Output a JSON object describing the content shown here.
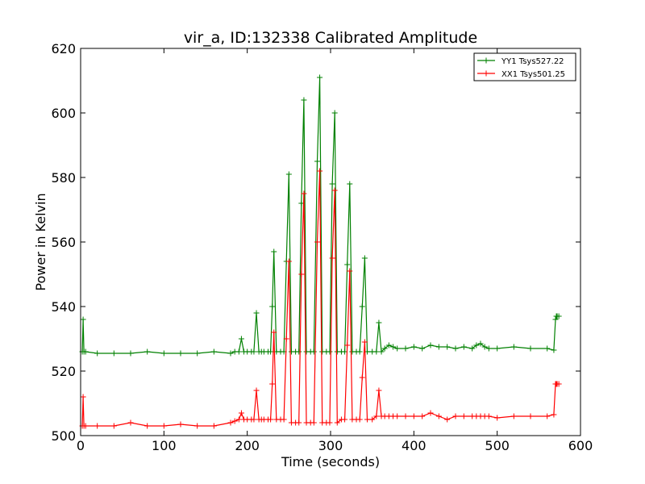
{
  "chart_data": {
    "type": "line",
    "title": "vir_a, ID:132338 Calibrated Amplitude",
    "xlabel": "Time (seconds)",
    "ylabel": "Power in Kelvin",
    "xlim": [
      0,
      600
    ],
    "ylim": [
      500,
      620
    ],
    "xticks": [
      "0",
      "100",
      "200",
      "300",
      "400",
      "500",
      "600"
    ],
    "yticks": [
      "500",
      "520",
      "540",
      "560",
      "580",
      "600",
      "620"
    ],
    "grid": false,
    "legend_position": "top-right",
    "series": [
      {
        "name": "YY1 Tsys527.22",
        "color": "#008000",
        "marker": "+",
        "x": [
          2,
          3,
          4,
          6,
          20,
          40,
          60,
          80,
          100,
          120,
          140,
          160,
          180,
          185,
          190,
          193,
          196,
          200,
          205,
          208,
          211,
          214,
          217,
          220,
          225,
          228,
          230,
          232,
          235,
          240,
          244,
          247,
          250,
          253,
          258,
          262,
          265,
          268,
          271,
          276,
          280,
          284,
          287,
          290,
          295,
          299,
          302,
          305,
          308,
          313,
          317,
          320,
          323,
          326,
          331,
          335,
          338,
          341,
          344,
          350,
          355,
          358,
          361,
          365,
          370,
          375,
          380,
          390,
          400,
          410,
          420,
          430,
          440,
          450,
          460,
          470,
          475,
          480,
          485,
          490,
          500,
          520,
          540,
          560,
          568,
          570,
          571,
          572,
          574
        ],
        "y": [
          526,
          536,
          526,
          526,
          525.5,
          525.5,
          525.5,
          526,
          525.5,
          525.5,
          525.5,
          526,
          525.5,
          526,
          526,
          530,
          526,
          526,
          526,
          526,
          538,
          526,
          526,
          526,
          526,
          526,
          540,
          557,
          526,
          526,
          526,
          554,
          581,
          526,
          526,
          526,
          572,
          604,
          526,
          526,
          526,
          585,
          611,
          526,
          526,
          526,
          578,
          600,
          526,
          526,
          526,
          553,
          578,
          526,
          526,
          526,
          540,
          555,
          526,
          526,
          526,
          535,
          526,
          527,
          528,
          527.5,
          527,
          527,
          527.5,
          527,
          528,
          527.5,
          527.5,
          527,
          527.5,
          527,
          528,
          528.5,
          527.5,
          527,
          527,
          527.5,
          527,
          527,
          526.5,
          536,
          537,
          537,
          537
        ]
      },
      {
        "name": "XX1 Tsys501.25",
        "color": "#ff0000",
        "marker": "+",
        "x": [
          2,
          3,
          4,
          6,
          20,
          40,
          60,
          80,
          100,
          120,
          140,
          160,
          180,
          185,
          190,
          193,
          196,
          200,
          205,
          208,
          211,
          214,
          217,
          220,
          225,
          228,
          230,
          232,
          235,
          240,
          244,
          247,
          250,
          253,
          258,
          262,
          265,
          268,
          271,
          276,
          280,
          284,
          287,
          290,
          295,
          299,
          302,
          305,
          308,
          313,
          317,
          320,
          323,
          326,
          331,
          335,
          338,
          341,
          344,
          350,
          355,
          358,
          361,
          365,
          370,
          375,
          380,
          390,
          400,
          410,
          420,
          430,
          440,
          450,
          460,
          470,
          475,
          480,
          485,
          490,
          500,
          520,
          540,
          560,
          568,
          570,
          571,
          572,
          574
        ],
        "y": [
          503,
          512,
          503,
          503,
          503,
          503,
          504,
          503,
          503,
          503.5,
          503,
          503,
          504,
          504.5,
          505,
          507,
          505,
          505,
          505,
          505,
          514,
          505,
          505,
          505,
          505,
          505,
          516,
          532,
          505,
          505,
          505,
          530,
          554,
          504,
          504,
          504,
          550,
          575,
          504,
          504,
          504,
          560,
          582,
          504,
          504,
          504,
          555,
          576,
          504,
          505,
          505,
          528,
          551,
          505,
          505,
          505,
          518,
          529,
          505,
          505,
          506,
          514,
          506,
          506,
          506,
          506,
          506,
          506,
          506,
          506,
          507,
          506,
          505,
          506,
          506,
          506,
          506,
          506,
          506,
          506,
          505.5,
          506,
          506,
          506,
          506.5,
          516,
          516,
          516,
          516
        ]
      }
    ]
  }
}
